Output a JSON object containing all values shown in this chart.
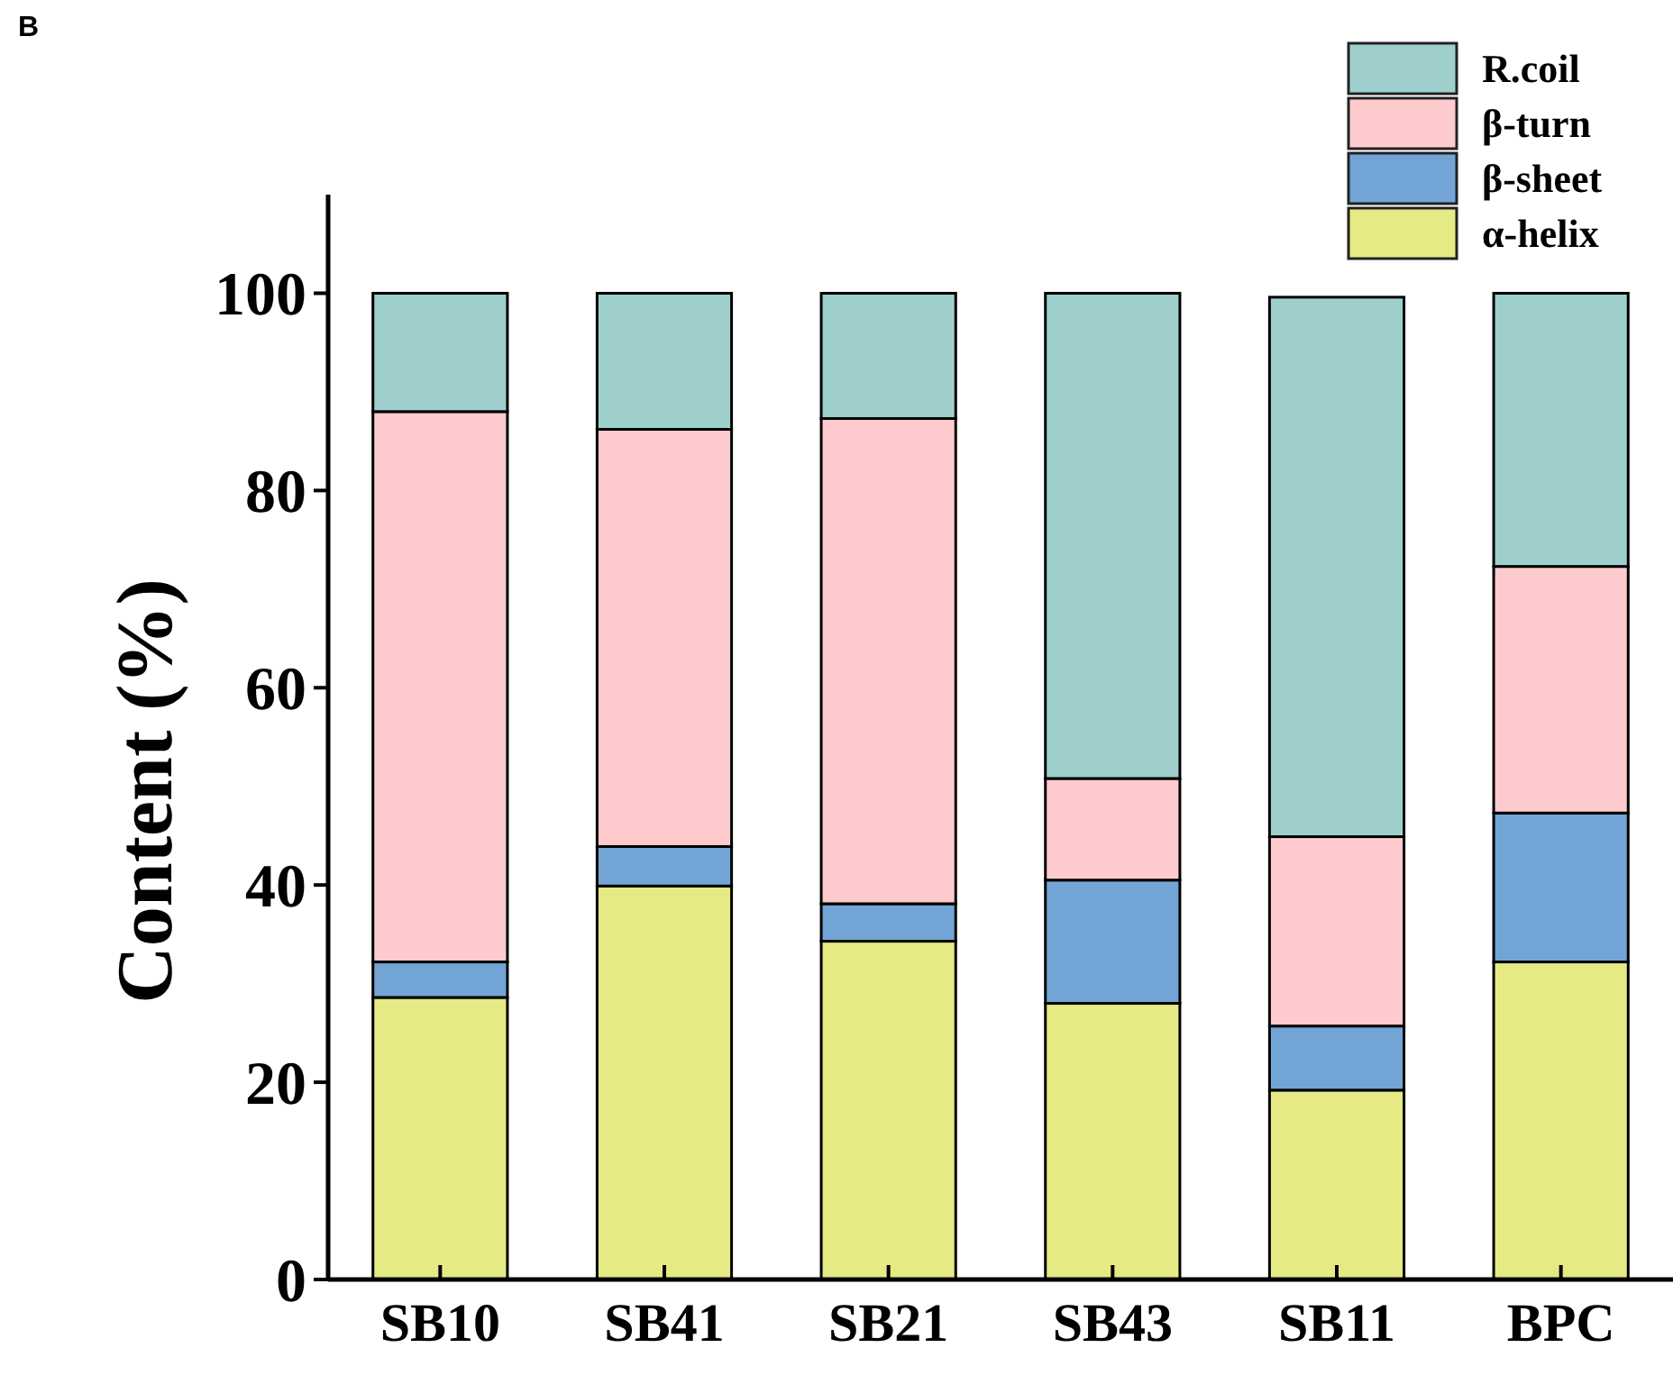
{
  "chart_data": {
    "type": "bar",
    "stacked": true,
    "ylabel": "Content (%)",
    "annotations": [
      "B"
    ],
    "categories": [
      "SB10",
      "SB41",
      "SB21",
      "SB43",
      "SB11",
      "BPC"
    ],
    "series": [
      {
        "name": "α-helix",
        "color": "#e5ea84",
        "values": [
          28.6,
          39.9,
          34.3,
          28.0,
          19.2,
          32.2
        ]
      },
      {
        "name": "β-sheet",
        "color": "#72a5d6",
        "values": [
          3.6,
          4.0,
          3.8,
          12.5,
          6.5,
          15.1
        ]
      },
      {
        "name": "β-turn",
        "color": "#fdcbcd",
        "values": [
          55.8,
          42.3,
          49.2,
          10.3,
          19.2,
          25.0
        ]
      },
      {
        "name": "R.coil",
        "color": "#9ecfcc",
        "values": [
          12.0,
          13.8,
          12.7,
          49.2,
          54.7,
          27.7
        ]
      }
    ],
    "ylim": [
      0,
      110
    ],
    "yticks": [
      0,
      20,
      40,
      60,
      80,
      100
    ],
    "grid": false,
    "legend": "top right"
  }
}
